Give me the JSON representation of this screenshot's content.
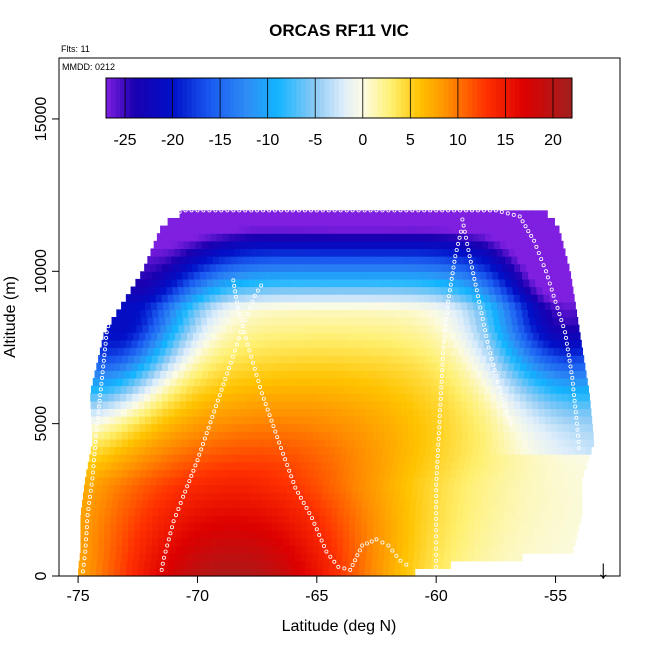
{
  "chart_data": {
    "type": "heatmap",
    "title": "ORCAS RF11 VIC",
    "notes": {
      "flights": "Flts: 11",
      "date": "MMDD: 0212"
    },
    "xlabel": "Latitude (deg N)",
    "ylabel": "Altitude (m)",
    "xlim": [
      -75.8,
      -52.3
    ],
    "ylim": [
      0,
      17000
    ],
    "x_ticks": [
      -75,
      -70,
      -65,
      -60,
      -55
    ],
    "y_ticks": [
      0,
      5000,
      10000,
      15000
    ],
    "colorbar": {
      "range": [
        -27,
        22
      ],
      "ticks": [
        -25,
        -20,
        -15,
        -10,
        -5,
        0,
        5,
        10,
        15,
        20
      ],
      "stops": [
        {
          "v": -27,
          "color": "#7f1fe0"
        },
        {
          "v": -24,
          "color": "#1a00b0"
        },
        {
          "v": -20,
          "color": "#0010c8"
        },
        {
          "v": -16,
          "color": "#1a5af0"
        },
        {
          "v": -12,
          "color": "#2e8ff5"
        },
        {
          "v": -9,
          "color": "#12b4ff"
        },
        {
          "v": -5,
          "color": "#8ccaf5"
        },
        {
          "v": -2,
          "color": "#dfeefb"
        },
        {
          "v": 0,
          "color": "#fbfbe4"
        },
        {
          "v": 3,
          "color": "#fff070"
        },
        {
          "v": 6,
          "color": "#ffc300"
        },
        {
          "v": 9,
          "color": "#ff8c00"
        },
        {
          "v": 13,
          "color": "#ff3000"
        },
        {
          "v": 17,
          "color": "#dd0000"
        },
        {
          "v": 22,
          "color": "#a02020"
        }
      ]
    },
    "field_model": "value = hill(lat, alt) - cold_wing_left(lat, alt) - cold_wing_right(lat, alt)",
    "envelope": [
      {
        "alt": 250,
        "lat_min": -75.0,
        "lat_max": -60.9
      },
      {
        "alt": 800,
        "lat_min": -74.9,
        "lat_max": -54.3
      },
      {
        "alt": 2000,
        "lat_min": -74.9,
        "lat_max": -53.9
      },
      {
        "alt": 3200,
        "lat_min": -74.7,
        "lat_max": -53.9
      },
      {
        "alt": 4400,
        "lat_min": -74.4,
        "lat_max": -53.4
      },
      {
        "alt": 6000,
        "lat_min": -74.5,
        "lat_max": -53.6
      },
      {
        "alt": 8000,
        "lat_min": -73.9,
        "lat_max": -54.0
      },
      {
        "alt": 10000,
        "lat_min": -72.3,
        "lat_max": -54.4
      },
      {
        "alt": 11500,
        "lat_min": -71.5,
        "lat_max": -54.9
      },
      {
        "alt": 12000,
        "lat_min": -70.5,
        "lat_max": -55.5
      },
      {
        "alt": 12100,
        "lat_min": -59.2,
        "lat_max": -56.3
      }
    ],
    "flight_track": [
      [
        -74.8,
        150
      ],
      [
        -74.7,
        800
      ],
      [
        -74.6,
        2000
      ],
      [
        -74.4,
        3200
      ],
      [
        -74.2,
        5000
      ],
      [
        -74.0,
        6500
      ],
      [
        -73.8,
        8000
      ],
      [
        -73.5,
        9000
      ],
      [
        -73.0,
        10000
      ],
      [
        -72.3,
        11000
      ],
      [
        -71.5,
        11800
      ],
      [
        -70.5,
        12000
      ],
      [
        -69.0,
        12000
      ],
      [
        -67.0,
        12000
      ],
      [
        -65.0,
        12000
      ],
      [
        -63.0,
        12000
      ],
      [
        -61.0,
        12000
      ],
      [
        -59.0,
        12000
      ],
      [
        -57.5,
        12000
      ],
      [
        -56.5,
        11800
      ],
      [
        -55.9,
        11000
      ],
      [
        -55.4,
        10000
      ],
      [
        -55.0,
        9000
      ],
      [
        -54.6,
        8000
      ],
      [
        -54.3,
        6500
      ],
      [
        -54.1,
        5000
      ],
      [
        -54.0,
        4000
      ]
    ],
    "extra_tracks": [
      [
        [
          -71.5,
          200
        ],
        [
          -71.4,
          600
        ],
        [
          -71.2,
          1200
        ],
        [
          -71.0,
          1800
        ],
        [
          -70.6,
          2600
        ],
        [
          -70.0,
          3800
        ],
        [
          -69.3,
          5400
        ],
        [
          -68.6,
          7000
        ],
        [
          -68.1,
          8200
        ],
        [
          -67.6,
          9200
        ],
        [
          -67.2,
          9700
        ]
      ],
      [
        [
          -68.5,
          9700
        ],
        [
          -68.3,
          8800
        ],
        [
          -67.9,
          7600
        ],
        [
          -67.3,
          6000
        ],
        [
          -66.5,
          4200
        ],
        [
          -65.9,
          2900
        ],
        [
          -65.2,
          1900
        ],
        [
          -64.6,
          800
        ],
        [
          -64.1,
          300
        ],
        [
          -63.6,
          200
        ]
      ],
      [
        [
          -63.6,
          200
        ],
        [
          -63.1,
          1000
        ],
        [
          -62.5,
          1200
        ],
        [
          -62.0,
          1000
        ],
        [
          -61.5,
          500
        ],
        [
          -61.0,
          250
        ]
      ],
      [
        [
          -60.0,
          300
        ],
        [
          -60.0,
          1500
        ],
        [
          -60.0,
          3000
        ],
        [
          -59.9,
          4500
        ],
        [
          -59.8,
          6000
        ],
        [
          -59.7,
          7500
        ],
        [
          -59.5,
          9000
        ],
        [
          -59.2,
          10500
        ],
        [
          -58.9,
          11500
        ]
      ],
      [
        [
          -58.9,
          11700
        ],
        [
          -58.6,
          10500
        ],
        [
          -58.2,
          9000
        ],
        [
          -57.8,
          7500
        ],
        [
          -57.3,
          6000
        ],
        [
          -56.8,
          4800
        ]
      ]
    ],
    "marker_annotation": {
      "x": -53.0,
      "label": "↓"
    }
  }
}
